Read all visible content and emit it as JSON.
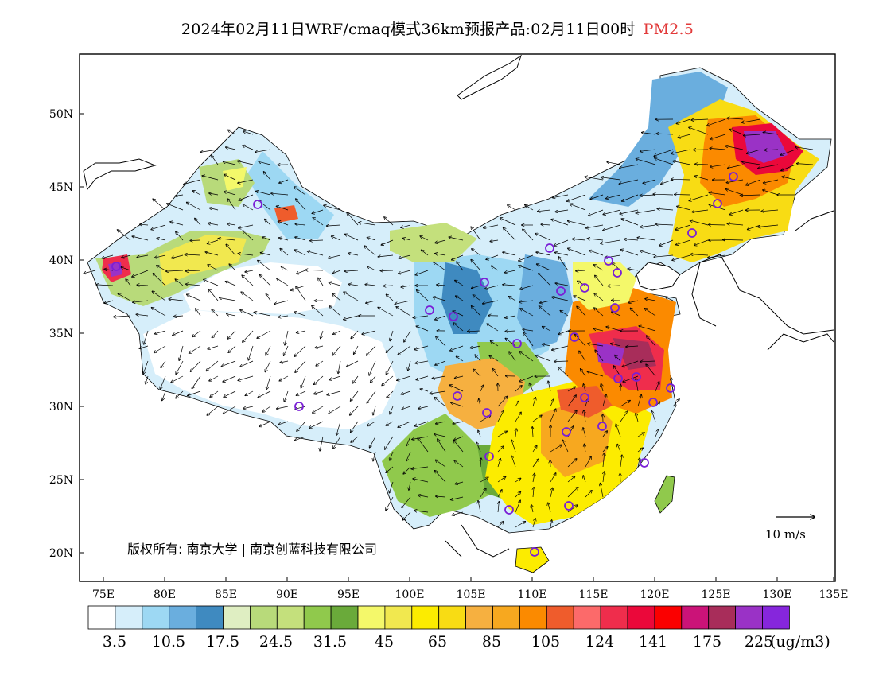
{
  "title": {
    "text": "2024年02月11日WRF/cmaq模式36km预报产品:02月11日00时",
    "species": "PM2.5",
    "species_color": "#e23a3a"
  },
  "axes": {
    "lon_ticks": [
      "75E",
      "80E",
      "85E",
      "90E",
      "95E",
      "100E",
      "105E",
      "110E",
      "115E",
      "120E",
      "125E",
      "130E",
      "135E"
    ],
    "lat_ticks": [
      "20N",
      "25N",
      "30N",
      "35N",
      "40N",
      "45N",
      "50N"
    ]
  },
  "copyright": "版权所有: 南京大学 | 南京创蓝科技有限公司",
  "wind_scale_label": "10 m/s",
  "colorbar": {
    "colors": [
      "#ffffff",
      "#d6eefa",
      "#9dd8f3",
      "#6aaede",
      "#3f8ac0",
      "#dfeec2",
      "#b8da7a",
      "#c4e07c",
      "#90c94c",
      "#6aaa3a",
      "#f4f86a",
      "#f1e84f",
      "#fcec00",
      "#f8dc14",
      "#f6b040",
      "#f7a81f",
      "#fb8a00",
      "#ef5c2c",
      "#fc6a6a",
      "#ef2d4c",
      "#eb083a",
      "#fb0000",
      "#cb1378",
      "#a82d5a",
      "#9a32c6",
      "#8626dc"
    ],
    "labels": [
      "3.5",
      "10.5",
      "17.5",
      "24.5",
      "31.5",
      "45",
      "65",
      "85",
      "105",
      "124",
      "141",
      "175",
      "225"
    ],
    "unit": "(ug/m3)"
  },
  "palette": {
    "ocean": "#ffffff",
    "outline": "#000000"
  }
}
